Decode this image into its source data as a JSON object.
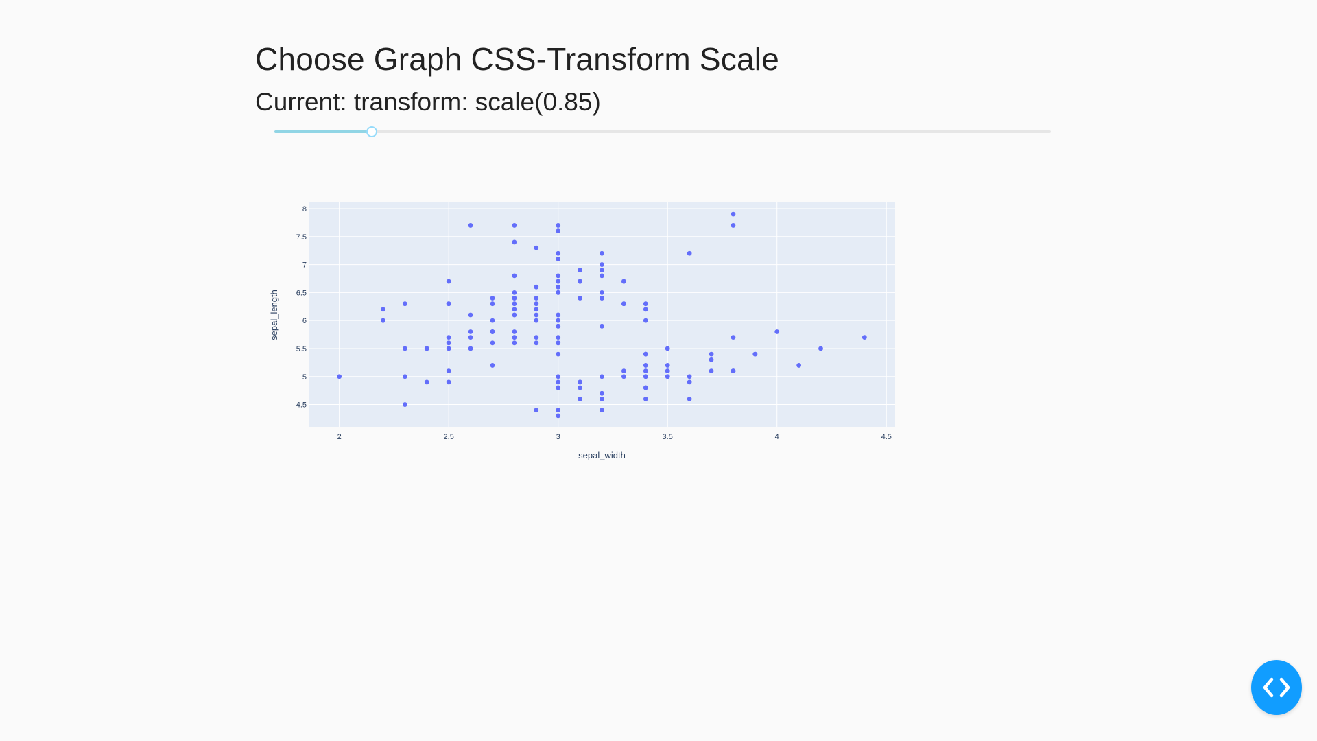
{
  "header": {
    "title": "Choose Graph CSS-Transform Scale",
    "current_label": "Current: transform: scale(0.85)"
  },
  "slider": {
    "value_fraction": 0.125
  },
  "colors": {
    "marker": "#636efa",
    "plot_bg": "#e5ecf6",
    "slider_track": "#91d5e5",
    "fab": "#119dff"
  },
  "fab": {
    "icon": "code-icon"
  },
  "chart_data": {
    "type": "scatter",
    "xlabel": "sepal_width",
    "ylabel": "sepal_length",
    "xlim": [
      1.86,
      4.54
    ],
    "ylim": [
      4.09,
      8.11
    ],
    "xticks": [
      2,
      2.5,
      3,
      3.5,
      4,
      4.5
    ],
    "xtick_labels": [
      "2",
      "2.5",
      "3",
      "3.5",
      "4",
      "4.5"
    ],
    "yticks": [
      4.5,
      5,
      5.5,
      6,
      6.5,
      7,
      7.5,
      8
    ],
    "ytick_labels": [
      "4.5",
      "5",
      "5.5",
      "6",
      "6.5",
      "7",
      "7.5",
      "8"
    ],
    "grid": true,
    "points": [
      [
        3.5,
        5.1
      ],
      [
        3.0,
        4.9
      ],
      [
        3.2,
        4.7
      ],
      [
        3.1,
        4.6
      ],
      [
        3.6,
        5.0
      ],
      [
        3.9,
        5.4
      ],
      [
        3.4,
        4.6
      ],
      [
        3.4,
        5.0
      ],
      [
        2.9,
        4.4
      ],
      [
        3.1,
        4.9
      ],
      [
        3.7,
        5.4
      ],
      [
        3.4,
        4.8
      ],
      [
        3.0,
        4.8
      ],
      [
        3.0,
        4.3
      ],
      [
        4.0,
        5.8
      ],
      [
        4.4,
        5.7
      ],
      [
        3.9,
        5.4
      ],
      [
        3.5,
        5.1
      ],
      [
        3.8,
        5.7
      ],
      [
        3.8,
        5.1
      ],
      [
        3.4,
        5.4
      ],
      [
        3.7,
        5.1
      ],
      [
        3.6,
        4.6
      ],
      [
        3.3,
        5.1
      ],
      [
        3.4,
        4.8
      ],
      [
        3.0,
        5.0
      ],
      [
        3.4,
        5.0
      ],
      [
        3.5,
        5.2
      ],
      [
        3.4,
        5.2
      ],
      [
        3.2,
        4.7
      ],
      [
        3.1,
        4.8
      ],
      [
        3.4,
        5.4
      ],
      [
        4.1,
        5.2
      ],
      [
        4.2,
        5.5
      ],
      [
        3.1,
        4.9
      ],
      [
        3.2,
        5.0
      ],
      [
        3.5,
        5.5
      ],
      [
        3.6,
        4.9
      ],
      [
        3.0,
        4.4
      ],
      [
        3.4,
        5.1
      ],
      [
        3.5,
        5.0
      ],
      [
        2.3,
        4.5
      ],
      [
        3.2,
        4.4
      ],
      [
        3.5,
        5.0
      ],
      [
        3.8,
        5.1
      ],
      [
        3.0,
        4.8
      ],
      [
        3.8,
        5.1
      ],
      [
        3.2,
        4.6
      ],
      [
        3.7,
        5.3
      ],
      [
        3.3,
        5.0
      ],
      [
        3.2,
        7.0
      ],
      [
        3.2,
        6.4
      ],
      [
        3.1,
        6.9
      ],
      [
        2.3,
        5.5
      ],
      [
        2.8,
        6.5
      ],
      [
        2.8,
        5.7
      ],
      [
        3.3,
        6.3
      ],
      [
        2.4,
        4.9
      ],
      [
        2.9,
        6.6
      ],
      [
        2.7,
        5.2
      ],
      [
        2.0,
        5.0
      ],
      [
        3.0,
        5.9
      ],
      [
        2.2,
        6.0
      ],
      [
        2.9,
        6.1
      ],
      [
        2.9,
        5.6
      ],
      [
        3.1,
        6.7
      ],
      [
        3.0,
        5.6
      ],
      [
        2.7,
        5.8
      ],
      [
        2.2,
        6.2
      ],
      [
        2.5,
        5.6
      ],
      [
        3.2,
        5.9
      ],
      [
        2.8,
        6.1
      ],
      [
        2.5,
        6.3
      ],
      [
        2.8,
        6.1
      ],
      [
        2.9,
        6.4
      ],
      [
        3.0,
        6.6
      ],
      [
        2.8,
        6.8
      ],
      [
        3.0,
        6.7
      ],
      [
        2.9,
        6.0
      ],
      [
        2.6,
        5.7
      ],
      [
        2.4,
        5.5
      ],
      [
        2.4,
        5.5
      ],
      [
        2.7,
        5.8
      ],
      [
        2.7,
        6.0
      ],
      [
        3.0,
        5.4
      ],
      [
        3.4,
        6.0
      ],
      [
        3.1,
        6.7
      ],
      [
        2.3,
        6.3
      ],
      [
        3.0,
        5.6
      ],
      [
        2.5,
        5.5
      ],
      [
        2.6,
        5.5
      ],
      [
        3.0,
        6.1
      ],
      [
        2.6,
        5.8
      ],
      [
        2.3,
        5.0
      ],
      [
        2.7,
        5.6
      ],
      [
        3.0,
        5.7
      ],
      [
        2.9,
        5.7
      ],
      [
        2.9,
        6.2
      ],
      [
        2.5,
        5.1
      ],
      [
        2.8,
        5.7
      ],
      [
        3.3,
        6.3
      ],
      [
        2.7,
        5.8
      ],
      [
        3.0,
        7.1
      ],
      [
        2.9,
        6.3
      ],
      [
        3.0,
        6.5
      ],
      [
        3.0,
        7.6
      ],
      [
        2.5,
        4.9
      ],
      [
        2.9,
        7.3
      ],
      [
        2.5,
        6.7
      ],
      [
        3.6,
        7.2
      ],
      [
        3.2,
        6.5
      ],
      [
        2.7,
        6.4
      ],
      [
        3.0,
        6.8
      ],
      [
        2.5,
        5.7
      ],
      [
        2.8,
        5.8
      ],
      [
        3.2,
        6.4
      ],
      [
        3.0,
        6.5
      ],
      [
        3.8,
        7.7
      ],
      [
        2.6,
        7.7
      ],
      [
        2.2,
        6.0
      ],
      [
        3.2,
        6.9
      ],
      [
        2.8,
        5.6
      ],
      [
        2.8,
        7.7
      ],
      [
        2.7,
        6.3
      ],
      [
        3.3,
        6.7
      ],
      [
        3.2,
        7.2
      ],
      [
        2.8,
        6.2
      ],
      [
        3.0,
        6.1
      ],
      [
        2.8,
        6.4
      ],
      [
        3.0,
        7.2
      ],
      [
        2.8,
        7.4
      ],
      [
        3.8,
        7.9
      ],
      [
        2.8,
        6.4
      ],
      [
        2.8,
        6.3
      ],
      [
        2.6,
        6.1
      ],
      [
        3.0,
        7.7
      ],
      [
        3.4,
        6.3
      ],
      [
        3.1,
        6.4
      ],
      [
        3.0,
        6.0
      ],
      [
        3.1,
        6.9
      ],
      [
        3.1,
        6.7
      ],
      [
        3.1,
        6.9
      ],
      [
        2.7,
        5.8
      ],
      [
        3.2,
        6.8
      ],
      [
        3.3,
        6.7
      ],
      [
        3.0,
        6.7
      ],
      [
        2.5,
        6.3
      ],
      [
        3.0,
        6.5
      ],
      [
        3.4,
        6.2
      ],
      [
        3.0,
        5.9
      ]
    ]
  }
}
